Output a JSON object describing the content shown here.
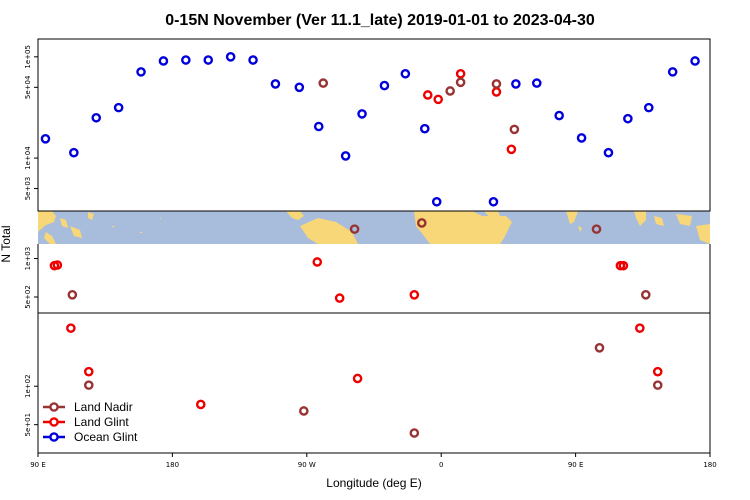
{
  "chart_data": {
    "type": "scatter",
    "title": "0-15N November (Ver 11.1_late)   2019-01-01 to 2023-04-30",
    "xlabel": "Longitude (deg E)",
    "ylabel": "N Total",
    "x_ticks": [
      {
        "value": 90,
        "label": "90 E"
      },
      {
        "value": 180,
        "label": "180"
      },
      {
        "value": 270,
        "label": "90 W"
      },
      {
        "value": 360,
        "label": "0"
      },
      {
        "value": 450,
        "label": "90 E"
      },
      {
        "value": 540,
        "label": "180"
      }
    ],
    "xlim": [
      90,
      540
    ],
    "upper_panel": {
      "scale": "log",
      "ylim": [
        3000,
        150000
      ],
      "y_ticks": [
        {
          "value": 5000,
          "label": "5e+03"
        },
        {
          "value": 10000,
          "label": "1e+04"
        },
        {
          "value": 50000,
          "label": "5e+04"
        },
        {
          "value": 100000,
          "label": "1e+05"
        }
      ]
    },
    "lower_panel": {
      "scale": "log",
      "ylim": [
        30,
        1300
      ],
      "y_ticks": [
        {
          "value": 50,
          "label": "5e+01"
        },
        {
          "value": 100,
          "label": "1e+02"
        },
        {
          "value": 500,
          "label": "5e+02"
        },
        {
          "value": 1000,
          "label": "1e+03"
        }
      ]
    },
    "series": [
      {
        "name": "Ocean Glint",
        "color": "#0000dd",
        "points": [
          [
            95,
            15500
          ],
          [
            114,
            11300
          ],
          [
            129,
            25000
          ],
          [
            144,
            31500
          ],
          [
            159,
            71000
          ],
          [
            174,
            91000
          ],
          [
            189,
            93000
          ],
          [
            204,
            93000
          ],
          [
            219,
            100000
          ],
          [
            234,
            93000
          ],
          [
            249,
            54000
          ],
          [
            265,
            50000
          ],
          [
            278,
            20500
          ],
          [
            296,
            10500
          ],
          [
            307,
            27300
          ],
          [
            322,
            52000
          ],
          [
            336,
            68000
          ],
          [
            349,
            19500
          ],
          [
            357,
            3700
          ],
          [
            395,
            3700
          ],
          [
            410,
            54000
          ],
          [
            424,
            55000
          ],
          [
            439,
            26300
          ],
          [
            454,
            15800
          ],
          [
            472,
            11300
          ],
          [
            485,
            24500
          ],
          [
            499,
            31500
          ],
          [
            515,
            71000
          ],
          [
            530,
            91000
          ]
        ]
      },
      {
        "name": "Land Glint",
        "color": "#ee0000",
        "points": [
          [
            101,
            880
          ],
          [
            103,
            890
          ],
          [
            112,
            285
          ],
          [
            124,
            130
          ],
          [
            199,
            72
          ],
          [
            277,
            940
          ],
          [
            292,
            490
          ],
          [
            304,
            115
          ],
          [
            342,
            520
          ],
          [
            351,
            42000
          ],
          [
            358,
            38000
          ],
          [
            373,
            68000
          ],
          [
            397,
            45000
          ],
          [
            407,
            12200
          ],
          [
            480,
            880
          ],
          [
            482,
            880
          ],
          [
            493,
            285
          ],
          [
            505,
            130
          ]
        ]
      },
      {
        "name": "Land Nadir",
        "color": "#993333",
        "points": [
          [
            113,
            520
          ],
          [
            124,
            102
          ],
          [
            268,
            64
          ],
          [
            302,
            1700
          ],
          [
            281,
            55000
          ],
          [
            347,
            1900
          ],
          [
            342,
            43
          ],
          [
            366,
            46000
          ],
          [
            373,
            56000
          ],
          [
            397,
            54000
          ],
          [
            409,
            19200
          ],
          [
            464,
            1700
          ],
          [
            466,
            200
          ],
          [
            497,
            520
          ],
          [
            505,
            102
          ]
        ]
      }
    ],
    "legend": {
      "position": "bottom-left",
      "entries": [
        "Land Nadir",
        "Land Glint",
        "Ocean Glint"
      ]
    }
  },
  "colors": {
    "ocean": "#a8bcdc",
    "land": "#f8d778"
  }
}
